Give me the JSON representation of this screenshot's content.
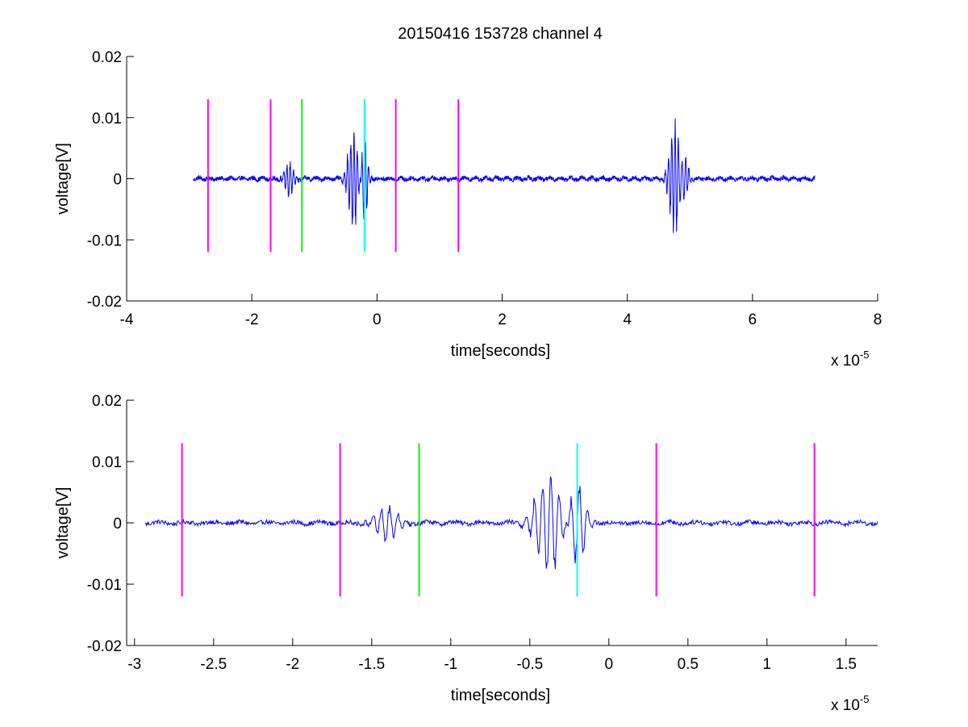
{
  "figure": {
    "title": "20150416 153728 channel 4"
  },
  "chart_data": [
    {
      "type": "line",
      "title": "20150416 153728 channel 4",
      "xlabel": "time[seconds]",
      "ylabel": "voltage[V]",
      "x_exponent_label": "x 10",
      "x_exponent": "-5",
      "xlim": [
        -4,
        8
      ],
      "ylim": [
        -0.02,
        0.02
      ],
      "x_ticks": [
        -4,
        -2,
        0,
        2,
        4,
        6,
        8
      ],
      "x_tick_labels": [
        "-4",
        "-2",
        "0",
        "2",
        "4",
        "6",
        "8"
      ],
      "y_ticks": [
        -0.02,
        -0.01,
        0,
        0.01,
        0.02
      ],
      "y_tick_labels": [
        "-0.02",
        "-0.01",
        "0",
        "0.01",
        "0.02"
      ],
      "grid": false,
      "series": [
        {
          "color": "#0000ff",
          "x_range": [
            -2.93,
            7.0
          ],
          "baseline": 0,
          "noise": 0.0006,
          "bursts": [
            {
              "t": -1.4,
              "amp": 0.0032,
              "width": 0.09
            },
            {
              "t": -0.38,
              "amp": 0.0095,
              "width": 0.1
            },
            {
              "t": -0.2,
              "amp": 0.0085,
              "width": 0.06
            },
            {
              "t": 4.75,
              "amp": 0.0105,
              "width": 0.1
            },
            {
              "t": 4.92,
              "amp": 0.0045,
              "width": 0.07
            }
          ]
        }
      ],
      "markers": [
        {
          "x": -2.7,
          "y": [
            -0.012,
            0.013
          ],
          "color": "#ff00ff"
        },
        {
          "x": -1.7,
          "y": [
            -0.012,
            0.013
          ],
          "color": "#ff00ff"
        },
        {
          "x": -1.2,
          "y": [
            -0.012,
            0.013
          ],
          "color": "#00ff00"
        },
        {
          "x": -0.2,
          "y": [
            -0.012,
            0.013
          ],
          "color": "#00ffff"
        },
        {
          "x": 0.3,
          "y": [
            -0.012,
            0.013
          ],
          "color": "#ff00ff"
        },
        {
          "x": 1.3,
          "y": [
            -0.012,
            0.013
          ],
          "color": "#ff00ff"
        }
      ]
    },
    {
      "type": "line",
      "title": "",
      "xlabel": "time[seconds]",
      "ylabel": "voltage[V]",
      "x_exponent_label": "x 10",
      "x_exponent": "-5",
      "xlim": [
        -3.05,
        1.7
      ],
      "ylim": [
        -0.02,
        0.02
      ],
      "x_ticks": [
        -3,
        -2.5,
        -2,
        -1.5,
        -1,
        -0.5,
        0,
        0.5,
        1,
        1.5
      ],
      "x_tick_labels": [
        "-3",
        "-2.5",
        "-2",
        "-1.5",
        "-1",
        "-0.5",
        "0",
        "0.5",
        "1",
        "1.5"
      ],
      "y_ticks": [
        -0.02,
        -0.01,
        0,
        0.01,
        0.02
      ],
      "y_tick_labels": [
        "-0.02",
        "-0.01",
        "0",
        "0.01",
        "0.02"
      ],
      "grid": false,
      "series": [
        {
          "color": "#0000ff",
          "x_range": [
            -2.93,
            1.7
          ],
          "baseline": 0,
          "noise": 0.0006,
          "bursts": [
            {
              "t": -1.4,
              "amp": 0.0032,
              "width": 0.09
            },
            {
              "t": -0.38,
              "amp": 0.0095,
              "width": 0.1
            },
            {
              "t": -0.2,
              "amp": 0.0085,
              "width": 0.06
            }
          ]
        }
      ],
      "markers": [
        {
          "x": -2.7,
          "y": [
            -0.012,
            0.013
          ],
          "color": "#ff00ff"
        },
        {
          "x": -1.7,
          "y": [
            -0.012,
            0.013
          ],
          "color": "#ff00ff"
        },
        {
          "x": -1.2,
          "y": [
            -0.012,
            0.013
          ],
          "color": "#00ff00"
        },
        {
          "x": -0.2,
          "y": [
            -0.012,
            0.013
          ],
          "color": "#00ffff"
        },
        {
          "x": 0.3,
          "y": [
            -0.012,
            0.013
          ],
          "color": "#ff00ff"
        },
        {
          "x": 1.3,
          "y": [
            -0.012,
            0.013
          ],
          "color": "#ff00ff"
        }
      ]
    }
  ]
}
